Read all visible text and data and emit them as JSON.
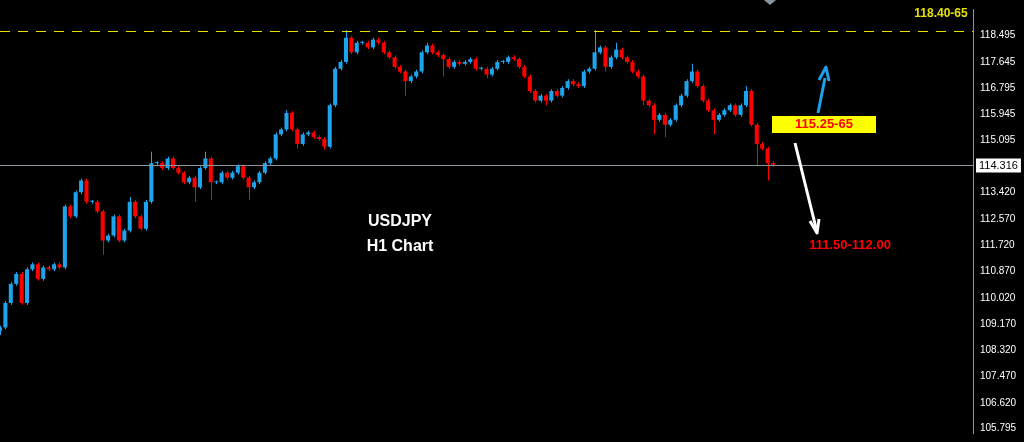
{
  "chart_data": {
    "type": "candlestick",
    "categories": [
      null,
      null,
      null,
      null,
      null,
      null,
      null,
      null,
      null,
      null,
      null,
      null,
      null,
      null,
      null,
      null,
      null,
      null,
      null,
      null,
      null,
      null,
      null,
      null,
      null,
      null,
      null,
      null,
      null,
      null,
      null,
      null,
      null,
      null,
      null,
      null,
      null,
      null,
      null,
      null,
      null,
      null,
      null,
      null,
      null,
      null,
      null,
      null,
      null,
      null,
      null,
      null,
      null,
      null,
      null,
      null,
      null,
      null,
      null,
      null,
      null,
      null,
      null,
      null,
      null,
      null,
      null,
      null,
      null,
      null,
      null,
      null,
      null,
      null,
      null,
      null,
      null,
      null,
      null,
      null,
      null,
      null,
      null,
      null,
      null,
      null,
      null,
      null,
      null,
      null,
      null,
      null,
      null,
      null,
      null,
      null,
      null,
      null,
      null,
      null,
      null,
      null,
      null,
      null,
      null,
      null,
      null,
      null,
      null,
      null,
      null,
      null,
      null,
      null,
      null,
      null,
      null,
      null,
      null,
      null,
      null,
      null,
      null,
      null,
      null,
      null,
      null,
      null,
      null,
      null,
      null,
      null,
      null,
      null,
      null,
      null,
      null,
      null,
      null,
      null,
      null,
      null,
      null,
      null,
      null,
      null,
      null,
      null,
      null,
      null,
      null,
      null,
      null,
      null,
      null,
      null,
      null,
      null,
      null,
      null,
      null,
      null,
      null,
      null,
      null,
      null,
      null,
      null,
      null,
      null,
      null,
      null,
      null,
      null,
      null,
      null,
      null,
      null,
      null,
      null,
      null
    ],
    "ohlc": [
      [
        108.95,
        109.12,
        108.82,
        109.06
      ],
      [
        109.06,
        109.91,
        109.0,
        109.85
      ],
      [
        109.85,
        110.53,
        109.79,
        110.47
      ],
      [
        110.47,
        110.85,
        110.41,
        110.79
      ],
      [
        110.79,
        110.85,
        109.79,
        109.85
      ],
      [
        109.85,
        111.0,
        109.79,
        110.94
      ],
      [
        110.94,
        111.16,
        110.88,
        111.1
      ],
      [
        111.1,
        111.16,
        110.57,
        110.63
      ],
      [
        110.63,
        111.06,
        110.57,
        111.0
      ],
      [
        111.0,
        111.06,
        110.88,
        110.94
      ],
      [
        110.94,
        111.16,
        110.88,
        111.1
      ],
      [
        111.1,
        111.16,
        110.94,
        111.0
      ],
      [
        111.0,
        113.03,
        110.94,
        112.97
      ],
      [
        112.97,
        113.03,
        112.59,
        112.65
      ],
      [
        112.65,
        113.49,
        112.59,
        113.43
      ],
      [
        113.43,
        113.87,
        113.37,
        113.81
      ],
      [
        113.81,
        113.87,
        113.06,
        113.12
      ],
      [
        113.12,
        113.18,
        113.06,
        113.12
      ],
      [
        113.12,
        113.18,
        112.75,
        112.81
      ],
      [
        112.81,
        112.87,
        111.41,
        111.87
      ],
      [
        111.87,
        112.09,
        111.81,
        112.03
      ],
      [
        112.03,
        112.71,
        111.97,
        112.65
      ],
      [
        112.65,
        112.71,
        111.81,
        111.87
      ],
      [
        111.87,
        112.25,
        111.81,
        112.19
      ],
      [
        112.19,
        113.28,
        112.13,
        113.12
      ],
      [
        113.12,
        113.18,
        112.59,
        112.65
      ],
      [
        112.65,
        112.71,
        112.19,
        112.25
      ],
      [
        112.25,
        113.18,
        112.19,
        113.12
      ],
      [
        113.12,
        114.74,
        113.06,
        114.37
      ],
      [
        114.37,
        114.43,
        114.31,
        114.37
      ],
      [
        114.37,
        114.43,
        114.15,
        114.21
      ],
      [
        114.21,
        114.58,
        114.15,
        114.52
      ],
      [
        114.52,
        114.58,
        114.15,
        114.21
      ],
      [
        114.21,
        114.27,
        114.0,
        114.06
      ],
      [
        114.06,
        114.12,
        113.69,
        113.75
      ],
      [
        113.75,
        113.96,
        113.69,
        113.9
      ],
      [
        113.9,
        113.96,
        113.12,
        113.59
      ],
      [
        113.59,
        114.27,
        113.53,
        114.21
      ],
      [
        114.21,
        114.74,
        114.15,
        114.52
      ],
      [
        114.52,
        114.58,
        113.18,
        113.75
      ],
      [
        113.75,
        113.81,
        113.69,
        113.75
      ],
      [
        113.75,
        114.12,
        113.69,
        114.06
      ],
      [
        114.06,
        114.12,
        113.84,
        113.9
      ],
      [
        113.9,
        114.12,
        113.84,
        114.06
      ],
      [
        114.06,
        114.33,
        114.0,
        114.27
      ],
      [
        114.27,
        114.33,
        113.84,
        113.9
      ],
      [
        113.9,
        113.96,
        113.18,
        113.59
      ],
      [
        113.59,
        113.81,
        113.53,
        113.75
      ],
      [
        113.75,
        114.12,
        113.69,
        114.06
      ],
      [
        114.06,
        114.43,
        114.0,
        114.37
      ],
      [
        114.37,
        114.58,
        114.31,
        114.52
      ],
      [
        114.52,
        115.36,
        114.46,
        115.3
      ],
      [
        115.3,
        115.52,
        115.24,
        115.46
      ],
      [
        115.46,
        116.08,
        115.4,
        115.99
      ],
      [
        115.99,
        116.05,
        115.4,
        115.46
      ],
      [
        115.46,
        115.52,
        114.84,
        114.99
      ],
      [
        114.99,
        115.36,
        114.93,
        115.3
      ],
      [
        115.3,
        115.42,
        115.24,
        115.36
      ],
      [
        115.36,
        115.42,
        115.15,
        115.21
      ],
      [
        115.21,
        115.27,
        115.09,
        115.15
      ],
      [
        115.15,
        115.21,
        114.8,
        114.9
      ],
      [
        114.9,
        116.3,
        114.84,
        116.24
      ],
      [
        116.24,
        117.48,
        116.18,
        117.42
      ],
      [
        117.42,
        117.7,
        117.36,
        117.64
      ],
      [
        117.64,
        118.67,
        117.58,
        118.42
      ],
      [
        118.42,
        118.48,
        117.89,
        117.95
      ],
      [
        117.95,
        118.32,
        117.89,
        118.26
      ],
      [
        118.26,
        118.32,
        118.2,
        118.26
      ],
      [
        118.26,
        118.32,
        118.05,
        118.11
      ],
      [
        118.11,
        118.42,
        118.05,
        118.36
      ],
      [
        118.36,
        118.42,
        118.2,
        118.26
      ],
      [
        118.26,
        118.32,
        117.89,
        117.95
      ],
      [
        117.95,
        118.01,
        117.73,
        117.79
      ],
      [
        117.79,
        117.85,
        117.42,
        117.48
      ],
      [
        117.48,
        117.54,
        117.27,
        117.33
      ],
      [
        117.33,
        117.39,
        116.55,
        117.02
      ],
      [
        117.02,
        117.23,
        116.96,
        117.17
      ],
      [
        117.17,
        117.39,
        117.11,
        117.33
      ],
      [
        117.33,
        118.01,
        117.27,
        117.95
      ],
      [
        117.95,
        118.26,
        117.89,
        118.17
      ],
      [
        118.17,
        118.23,
        117.89,
        117.95
      ],
      [
        117.95,
        118.01,
        117.8,
        117.86
      ],
      [
        117.86,
        117.92,
        117.17,
        117.73
      ],
      [
        117.73,
        117.79,
        117.42,
        117.48
      ],
      [
        117.48,
        117.7,
        117.42,
        117.64
      ],
      [
        117.64,
        117.7,
        117.52,
        117.58
      ],
      [
        117.58,
        117.7,
        117.52,
        117.64
      ],
      [
        117.64,
        117.79,
        117.58,
        117.73
      ],
      [
        117.73,
        117.79,
        117.36,
        117.42
      ],
      [
        117.42,
        117.48,
        117.36,
        117.42
      ],
      [
        117.42,
        117.48,
        117.11,
        117.23
      ],
      [
        117.23,
        117.48,
        117.17,
        117.42
      ],
      [
        117.42,
        117.7,
        117.36,
        117.64
      ],
      [
        117.64,
        117.7,
        117.58,
        117.64
      ],
      [
        117.64,
        117.85,
        117.58,
        117.79
      ],
      [
        117.79,
        117.86,
        117.67,
        117.73
      ],
      [
        117.73,
        117.79,
        117.42,
        117.48
      ],
      [
        117.48,
        117.54,
        117.11,
        117.17
      ],
      [
        117.17,
        117.23,
        116.64,
        116.7
      ],
      [
        116.7,
        116.76,
        116.33,
        116.39
      ],
      [
        116.39,
        116.61,
        116.33,
        116.55
      ],
      [
        116.55,
        116.61,
        116.24,
        116.39
      ],
      [
        116.39,
        116.76,
        116.33,
        116.7
      ],
      [
        116.7,
        116.76,
        116.49,
        116.55
      ],
      [
        116.55,
        116.86,
        116.49,
        116.8
      ],
      [
        116.8,
        117.08,
        116.74,
        117.02
      ],
      [
        117.02,
        117.08,
        116.86,
        116.92
      ],
      [
        116.92,
        116.98,
        116.8,
        116.86
      ],
      [
        116.86,
        117.39,
        116.8,
        117.33
      ],
      [
        117.33,
        117.48,
        117.27,
        117.42
      ],
      [
        117.42,
        118.67,
        117.36,
        117.95
      ],
      [
        117.95,
        118.17,
        117.89,
        118.11
      ],
      [
        118.11,
        118.17,
        117.33,
        117.48
      ],
      [
        117.48,
        117.85,
        117.42,
        117.79
      ],
      [
        117.79,
        118.26,
        117.73,
        118.04
      ],
      [
        118.04,
        118.1,
        117.73,
        117.79
      ],
      [
        117.79,
        117.85,
        117.58,
        117.64
      ],
      [
        117.64,
        117.7,
        117.27,
        117.33
      ],
      [
        117.33,
        117.39,
        117.11,
        117.17
      ],
      [
        117.17,
        117.23,
        116.24,
        116.39
      ],
      [
        116.39,
        116.45,
        116.18,
        116.24
      ],
      [
        116.24,
        116.3,
        115.3,
        115.77
      ],
      [
        115.77,
        115.99,
        115.71,
        115.93
      ],
      [
        115.93,
        115.99,
        115.21,
        115.61
      ],
      [
        115.61,
        115.83,
        115.55,
        115.77
      ],
      [
        115.77,
        116.3,
        115.71,
        116.24
      ],
      [
        116.24,
        116.61,
        116.18,
        116.55
      ],
      [
        116.55,
        117.08,
        116.49,
        117.02
      ],
      [
        117.02,
        117.58,
        116.96,
        117.33
      ],
      [
        117.33,
        117.39,
        116.8,
        116.86
      ],
      [
        116.86,
        116.92,
        116.33,
        116.39
      ],
      [
        116.39,
        116.45,
        116.02,
        116.08
      ],
      [
        116.08,
        116.14,
        115.3,
        115.77
      ],
      [
        115.77,
        115.99,
        115.71,
        115.93
      ],
      [
        115.93,
        116.14,
        115.87,
        116.08
      ],
      [
        116.08,
        116.3,
        116.02,
        116.24
      ],
      [
        116.24,
        116.3,
        115.87,
        115.93
      ],
      [
        115.93,
        116.3,
        115.87,
        116.24
      ],
      [
        116.24,
        116.86,
        116.18,
        116.7
      ],
      [
        116.7,
        116.76,
        115.55,
        115.61
      ],
      [
        115.61,
        115.67,
        114.27,
        114.99
      ],
      [
        114.99,
        115.05,
        114.78,
        114.84
      ],
      [
        114.84,
        114.9,
        113.81,
        114.37
      ],
      [
        114.37,
        114.43,
        114.25,
        114.32
      ],
      null,
      null,
      null,
      null,
      null,
      null,
      null,
      null,
      null,
      null,
      null,
      null,
      null,
      null,
      null,
      null,
      null,
      null,
      null,
      null,
      null,
      null,
      null,
      null,
      null,
      null,
      null,
      null,
      null,
      null,
      null,
      null,
      null,
      null,
      null,
      null,
      null
    ],
    "colors": [
      "#1ea4ec",
      "#1ea4ec",
      "#1ea4ec",
      "#1ea4ec",
      "#ff0000",
      "#1ea4ec",
      "#1ea4ec",
      "#ff0000",
      "#1ea4ec",
      "#ff0000",
      "#1ea4ec",
      "#ff0000",
      "#1ea4ec",
      "#ff0000",
      "#1ea4ec",
      "#1ea4ec",
      "#ff0000",
      "#1ea4ec",
      "#ff0000",
      "#ff0000",
      "#1ea4ec",
      "#1ea4ec",
      "#ff0000",
      "#1ea4ec",
      "#1ea4ec",
      "#ff0000",
      "#ff0000",
      "#1ea4ec",
      "#1ea4ec",
      "#1ea4ec",
      "#ff0000",
      "#1ea4ec",
      "#ff0000",
      "#ff0000",
      "#ff0000",
      "#1ea4ec",
      "#ff0000",
      "#1ea4ec",
      "#1ea4ec",
      "#ff0000",
      "#1ea4ec",
      "#1ea4ec",
      "#ff0000",
      "#1ea4ec",
      "#1ea4ec",
      "#ff0000",
      "#ff0000",
      "#1ea4ec",
      "#1ea4ec",
      "#1ea4ec",
      "#1ea4ec",
      "#1ea4ec",
      "#1ea4ec",
      "#1ea4ec",
      "#ff0000",
      "#ff0000",
      "#1ea4ec",
      "#1ea4ec",
      "#ff0000",
      "#ff0000",
      "#ff0000",
      "#1ea4ec",
      "#1ea4ec",
      "#1ea4ec",
      "#1ea4ec",
      "#ff0000",
      "#1ea4ec",
      "#1ea4ec",
      "#ff0000",
      "#1ea4ec",
      "#ff0000",
      "#ff0000",
      "#ff0000",
      "#ff0000",
      "#ff0000",
      "#ff0000",
      "#1ea4ec",
      "#1ea4ec",
      "#1ea4ec",
      "#1ea4ec",
      "#ff0000",
      "#ff0000",
      "#ff0000",
      "#ff0000",
      "#1ea4ec",
      "#ff0000",
      "#1ea4ec",
      "#1ea4ec",
      "#ff0000",
      "#1ea4ec",
      "#ff0000",
      "#1ea4ec",
      "#1ea4ec",
      "#1ea4ec",
      "#1ea4ec",
      "#ff0000",
      "#ff0000",
      "#ff0000",
      "#ff0000",
      "#ff0000",
      "#1ea4ec",
      "#ff0000",
      "#1ea4ec",
      "#ff0000",
      "#1ea4ec",
      "#1ea4ec",
      "#ff0000",
      "#ff0000",
      "#1ea4ec",
      "#1ea4ec",
      "#1ea4ec",
      "#1ea4ec",
      "#ff0000",
      "#1ea4ec",
      "#1ea4ec",
      "#ff0000",
      "#ff0000",
      "#ff0000",
      "#ff0000",
      "#ff0000",
      "#ff0000",
      "#ff0000",
      "#1ea4ec",
      "#ff0000",
      "#1ea4ec",
      "#1ea4ec",
      "#1ea4ec",
      "#1ea4ec",
      "#1ea4ec",
      "#ff0000",
      "#ff0000",
      "#ff0000",
      "#ff0000",
      "#1ea4ec",
      "#1ea4ec",
      "#1ea4ec",
      "#ff0000",
      "#1ea4ec",
      "#1ea4ec",
      "#ff0000",
      "#ff0000",
      "#ff0000",
      "#ff0000",
      "#ff0000",
      null,
      null,
      null,
      null,
      null,
      null,
      null,
      null,
      null,
      null,
      null,
      null,
      null,
      null,
      null,
      null,
      null,
      null,
      null,
      null,
      null,
      null,
      null,
      null,
      null,
      null,
      null,
      null,
      null,
      null,
      null,
      null,
      null,
      null,
      null,
      null,
      null
    ],
    "ylim": [
      105.65,
      119.35
    ],
    "yticks": [
      118.495,
      117.645,
      116.795,
      115.945,
      115.095,
      {
        "value": 113.42,
        "label": "113.420"
      },
      {
        "value": 112.57,
        "label": "112.570"
      },
      {
        "value": 111.72,
        "label": "111.720"
      },
      {
        "value": 110.87,
        "label": "110.870"
      },
      {
        "value": 110.02,
        "label": "110.020"
      },
      {
        "value": 109.17,
        "label": "109.170"
      },
      {
        "value": 108.32,
        "label": "108.320"
      },
      {
        "value": 107.47,
        "label": "107.470"
      },
      {
        "value": 106.62,
        "label": "106.620"
      },
      105.795
    ],
    "ref_lines": [
      {
        "axis": "y",
        "value": 114.316,
        "label": "114.316",
        "color": "#8c94a0",
        "line_style": "solid"
      },
      {
        "axis": "y",
        "value": 118.63,
        "color": "#e8e000",
        "line_style": "dashed"
      }
    ],
    "annotations": [
      "USDJPY",
      "H1 Chart",
      "115.25-65",
      "111.50-112.00",
      "118.40-65"
    ],
    "grid": false,
    "legend": false,
    "tick_labels": "y"
  }
}
